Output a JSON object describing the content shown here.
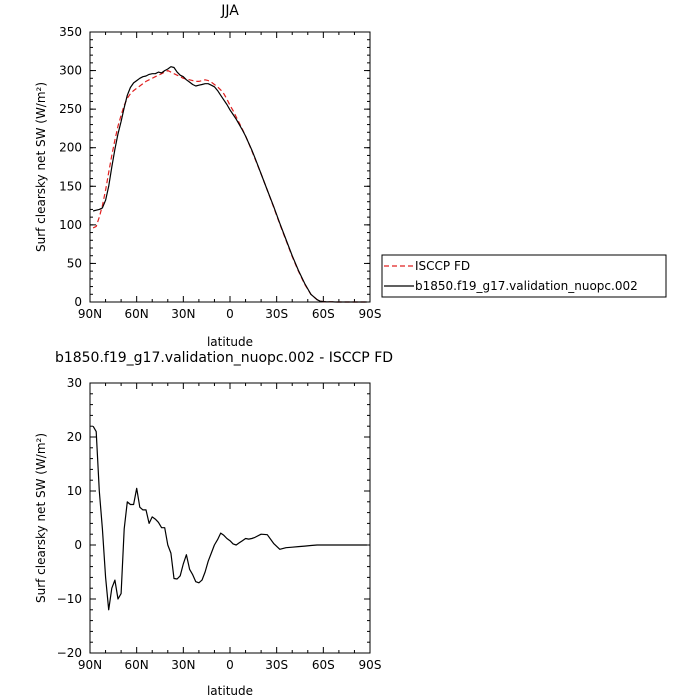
{
  "chart_data": [
    {
      "type": "line",
      "title": "JJA",
      "xlabel": "latitude",
      "ylabel": "Surf clearsky net SW (W/m²)",
      "xlim": [
        90,
        -90
      ],
      "ylim": [
        0,
        350
      ],
      "xticks": [
        90,
        60,
        30,
        0,
        -30,
        -60,
        -90
      ],
      "xtick_labels": [
        "90N",
        "60N",
        "30N",
        "0",
        "30S",
        "60S",
        "90S"
      ],
      "yticks": [
        0,
        50,
        100,
        150,
        200,
        250,
        300,
        350
      ],
      "ytick_labels": [
        "0",
        "50",
        "100",
        "150",
        "200",
        "250",
        "300",
        "350"
      ],
      "legend": "right",
      "series": [
        {
          "name": "ISCCP FD",
          "color": "#e02020",
          "dash": true,
          "x": [
            88,
            86,
            84,
            82,
            80,
            78,
            76,
            74,
            72,
            70,
            68,
            66,
            64,
            62,
            60,
            58,
            56,
            54,
            52,
            50,
            48,
            46,
            44,
            42,
            40,
            38,
            36,
            34,
            32,
            30,
            28,
            26,
            24,
            22,
            20,
            18,
            16,
            14,
            12,
            10,
            8,
            6,
            4,
            2,
            0,
            -2,
            -4,
            -6,
            -8,
            -10,
            -12,
            -14,
            -16,
            -20,
            -24,
            -28,
            -32,
            -36,
            -40,
            -44,
            -48,
            -52,
            -56,
            -58,
            -60,
            -62,
            -64,
            -66,
            -68,
            -70,
            -72,
            -74,
            -76,
            -78,
            -80,
            -82,
            -84,
            -86,
            -88
          ],
          "values": [
            96,
            98,
            110,
            125,
            145,
            168,
            190,
            210,
            228,
            242,
            255,
            264,
            270,
            274,
            277,
            280,
            283,
            286,
            288,
            290,
            292,
            294,
            296,
            298,
            300,
            298,
            296,
            294,
            292,
            290,
            289,
            288,
            287,
            286,
            286,
            287,
            288,
            287,
            285,
            282,
            279,
            275,
            270,
            263,
            255,
            248,
            240,
            232,
            224,
            215,
            206,
            196,
            186,
            166,
            145,
            123,
            101,
            80,
            59,
            40,
            23,
            10,
            3,
            1,
            0.5,
            0.3,
            0.2,
            0.1,
            0,
            0,
            0,
            0,
            0,
            0,
            0,
            0,
            0,
            0,
            0
          ]
        },
        {
          "name": "b1850.f19_g17.validation_nuopc.002",
          "color": "#000000",
          "dash": false,
          "x": [
            88,
            86,
            84,
            82,
            80,
            78,
            76,
            74,
            72,
            70,
            68,
            66,
            64,
            62,
            60,
            58,
            56,
            54,
            52,
            50,
            48,
            46,
            44,
            42,
            40,
            38,
            36,
            34,
            32,
            30,
            28,
            26,
            24,
            22,
            20,
            18,
            16,
            14,
            12,
            10,
            8,
            6,
            4,
            2,
            0,
            -2,
            -4,
            -6,
            -8,
            -10,
            -12,
            -14,
            -16,
            -20,
            -24,
            -28,
            -32,
            -36,
            -40,
            -44,
            -48,
            -52,
            -56,
            -58,
            -60,
            -62,
            -64,
            -66,
            -68,
            -70,
            -72,
            -74,
            -76,
            -78,
            -80,
            -82,
            -84,
            -86,
            -88
          ],
          "values": [
            118,
            119,
            120,
            122,
            132,
            150,
            175,
            198,
            218,
            234,
            252,
            268,
            278,
            284,
            287,
            290,
            292,
            293,
            295,
            296,
            296,
            298,
            297,
            300,
            302,
            305,
            304,
            298,
            294,
            292,
            288,
            285,
            282,
            280,
            281,
            282,
            283,
            283,
            281,
            279,
            274,
            268,
            262,
            256,
            249,
            243,
            237,
            230,
            223,
            215,
            206,
            197,
            187,
            166,
            145,
            124,
            102,
            81,
            60,
            41,
            24,
            10,
            3,
            1,
            0.5,
            0.3,
            0.2,
            0.1,
            0,
            0,
            0,
            0,
            0,
            0,
            0,
            0,
            0,
            0,
            0
          ]
        }
      ]
    },
    {
      "type": "line",
      "title": "b1850.f19_g17.validation_nuopc.002 - ISCCP FD",
      "xlabel": "latitude",
      "ylabel": "Surf clearsky net SW (W/m²)",
      "xlim": [
        90,
        -90
      ],
      "ylim": [
        -20,
        30
      ],
      "xticks": [
        90,
        60,
        30,
        0,
        -30,
        -60,
        -90
      ],
      "xtick_labels": [
        "90N",
        "60N",
        "30N",
        "0",
        "30S",
        "60S",
        "90S"
      ],
      "yticks": [
        -20,
        -10,
        0,
        10,
        20,
        30
      ],
      "ytick_labels": [
        "−20",
        "−10",
        "0",
        "10",
        "20",
        "30"
      ],
      "series": [
        {
          "color": "#000000",
          "dash": false,
          "x": [
            88,
            86,
            84,
            82,
            80,
            78,
            76,
            74,
            72,
            70,
            68,
            66,
            64,
            62,
            60,
            58,
            56,
            54,
            52,
            50,
            48,
            46,
            44,
            42,
            40,
            38,
            36,
            34,
            32,
            30,
            28,
            26,
            24,
            22,
            20,
            18,
            16,
            14,
            12,
            10,
            8,
            6,
            4,
            2,
            0,
            -2,
            -4,
            -6,
            -8,
            -10,
            -12,
            -14,
            -16,
            -20,
            -24,
            -28,
            -32,
            -36,
            -40,
            -44,
            -48,
            -52,
            -56,
            -58,
            -60,
            -62,
            -64,
            -66,
            -68,
            -70,
            -72,
            -74,
            -76,
            -78,
            -80,
            -82,
            -84,
            -86,
            -88
          ],
          "values": [
            22,
            21,
            10,
            3,
            -6,
            -12,
            -8,
            -6.5,
            -10,
            -9,
            3,
            8,
            7.5,
            7.5,
            10.5,
            7,
            6.5,
            6.5,
            4,
            5.2,
            4.8,
            4.2,
            3.2,
            3.2,
            0,
            -1.5,
            -6.2,
            -6.3,
            -5.7,
            -3.5,
            -1.8,
            -4.5,
            -5.5,
            -6.8,
            -7,
            -6.5,
            -5,
            -3,
            -1.5,
            0,
            1,
            2.2,
            1.8,
            1.2,
            0.8,
            0.2,
            0,
            0.4,
            0.8,
            1.2,
            1.1,
            1.2,
            1.4,
            2,
            1.9,
            0.3,
            -0.8,
            -0.5,
            -0.4,
            -0.3,
            -0.2,
            -0.1,
            0,
            0,
            0,
            0,
            0,
            0,
            0,
            0,
            0,
            0,
            0,
            0,
            0,
            0,
            0,
            0,
            0
          ]
        }
      ]
    }
  ]
}
